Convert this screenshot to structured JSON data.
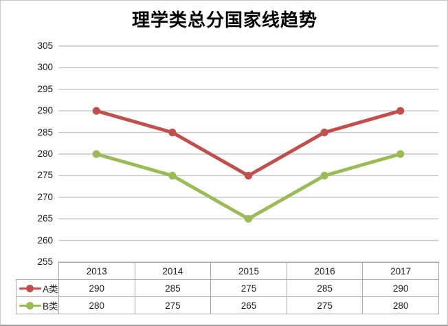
{
  "window": {
    "background": "#ffffff",
    "border_color": "#c7c7c7"
  },
  "chart_data": {
    "type": "line",
    "title": "理学类总分国家线趋势",
    "categories": [
      "2013",
      "2014",
      "2015",
      "2016",
      "2017"
    ],
    "series": [
      {
        "name": "A类",
        "color": "#c0504d",
        "values": [
          290,
          285,
          275,
          285,
          290
        ]
      },
      {
        "name": "B类",
        "color": "#9bbb59",
        "values": [
          280,
          275,
          265,
          275,
          280
        ]
      }
    ],
    "xlabel": "",
    "ylabel": "",
    "ylim": [
      255,
      305
    ],
    "yticks": [
      305,
      300,
      295,
      290,
      285,
      280,
      275,
      270,
      265,
      260,
      255
    ],
    "grid": "horizontal",
    "gridline_color": "#c6c6c6",
    "marker": "circle",
    "legend_position": "data-table-left",
    "data_table": true,
    "table_border_color": "#a9a9a9",
    "text_color": "#1a1a1a"
  }
}
